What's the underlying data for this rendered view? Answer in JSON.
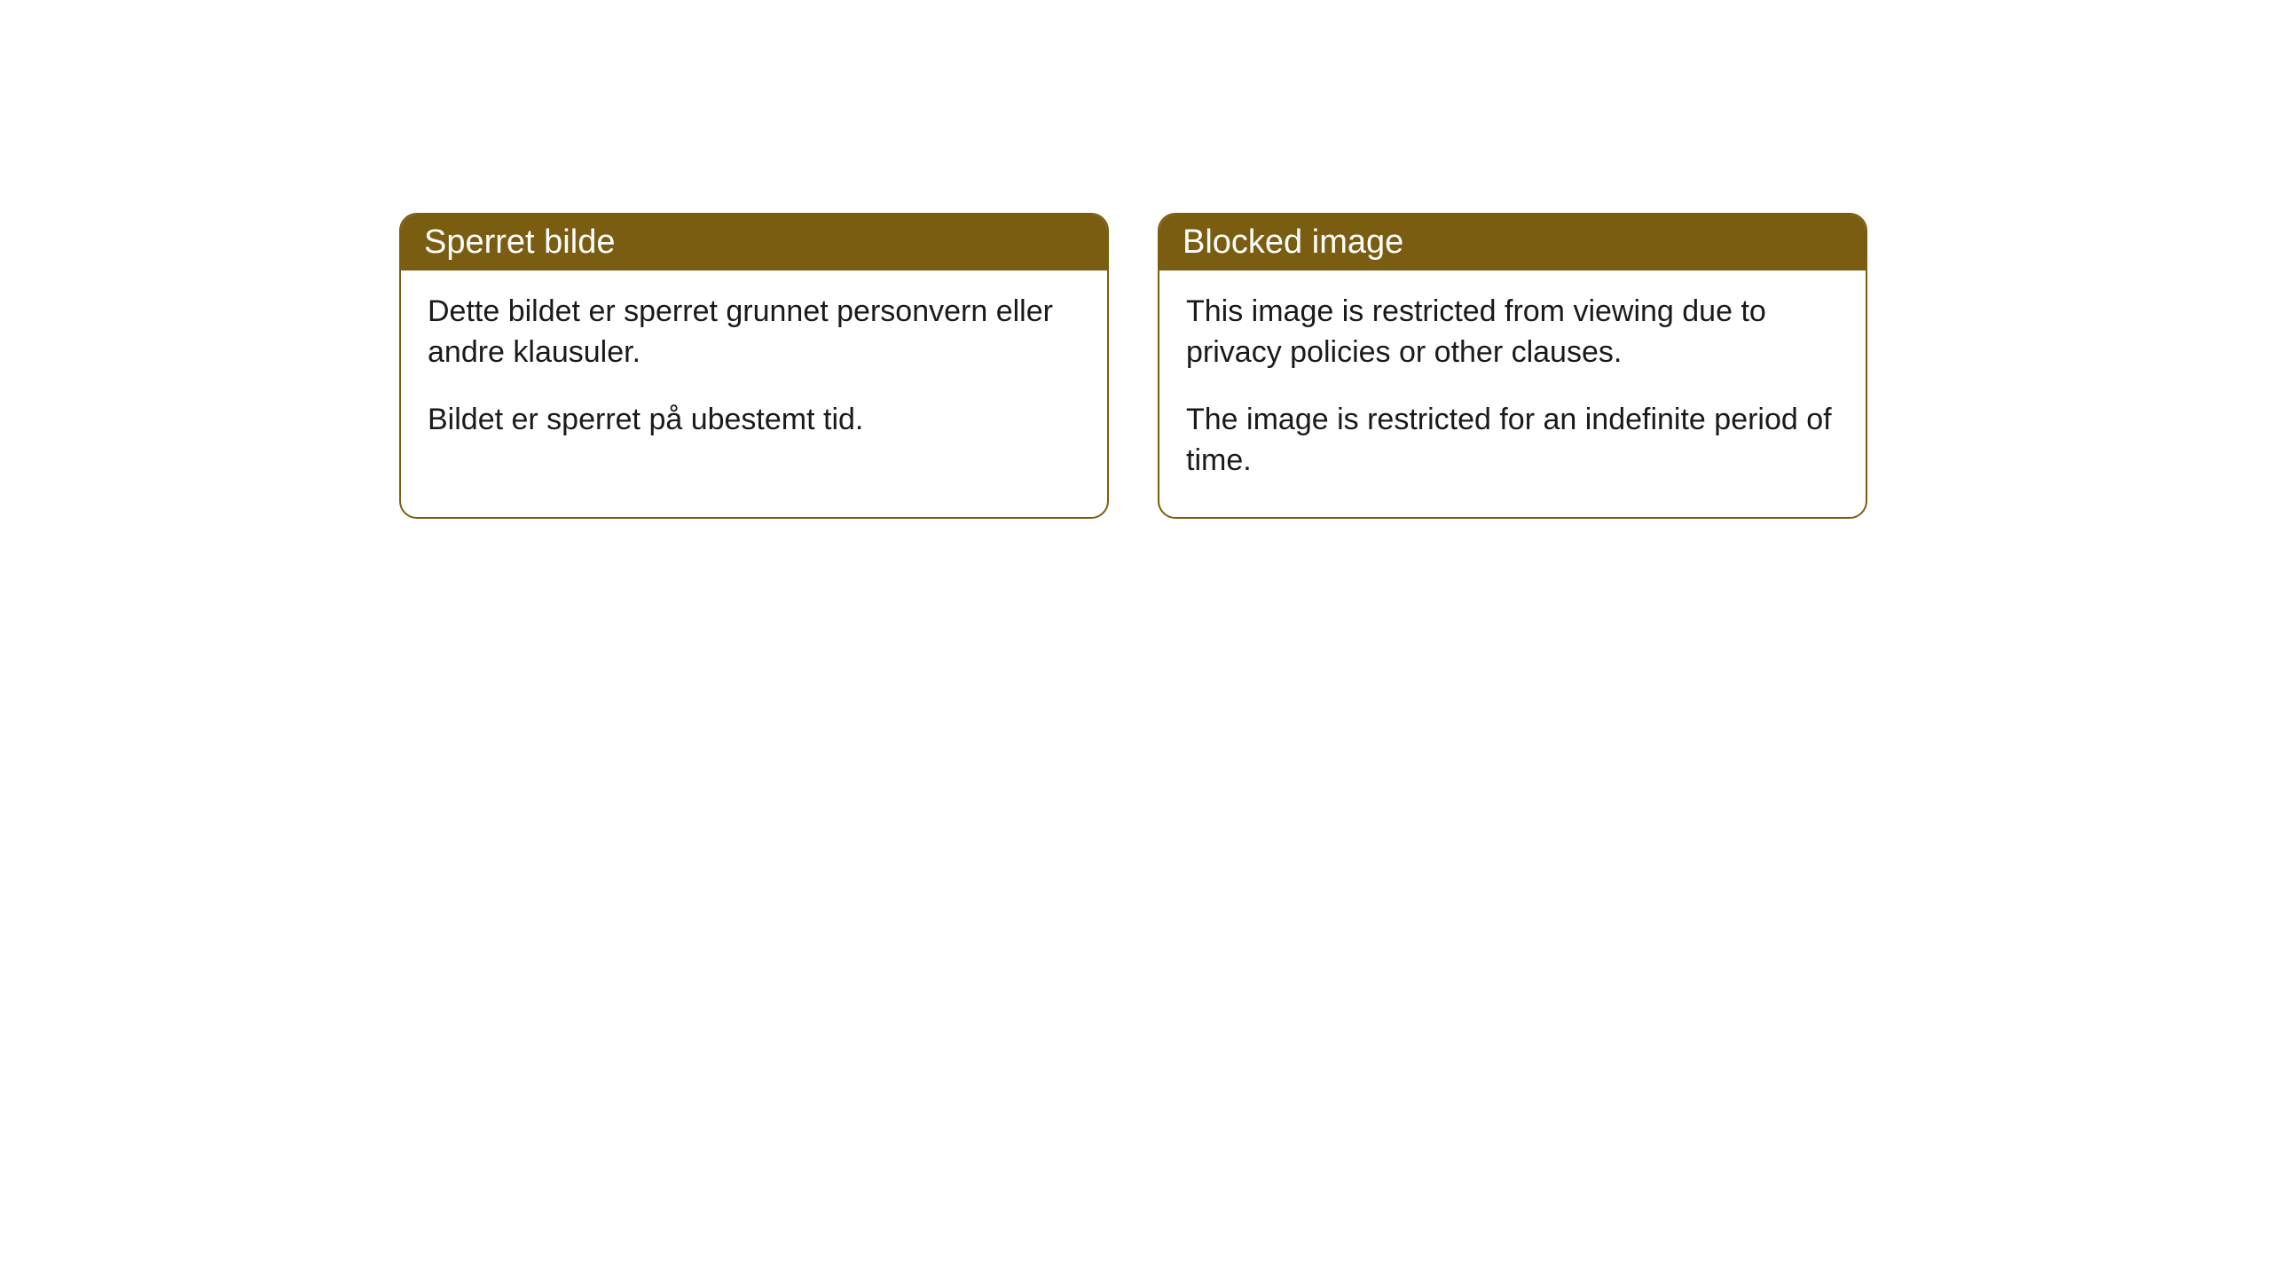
{
  "cards": [
    {
      "title": "Sperret bilde",
      "paragraph1": "Dette bildet er sperret grunnet personvern eller andre klausuler.",
      "paragraph2": "Bildet er sperret på ubestemt tid."
    },
    {
      "title": "Blocked image",
      "paragraph1": "This image is restricted from viewing due to privacy policies or other clauses.",
      "paragraph2": "The image is restricted for an indefinite period of time."
    }
  ],
  "styling": {
    "header_background": "#7b5d11",
    "header_text_color": "#ffffff",
    "border_color": "#7b5d11",
    "body_text_color": "#1a1a1a",
    "card_background": "#ffffff",
    "page_background": "#ffffff",
    "border_radius": 20,
    "header_fontsize": 38,
    "body_fontsize": 34
  }
}
